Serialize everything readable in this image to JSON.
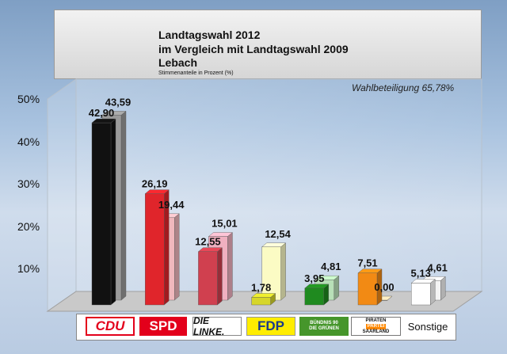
{
  "chart_data": {
    "type": "bar",
    "title": [
      "Landtagswahl 2012",
      "im Vergleich mit Landtagswahl 2009",
      "Lebach"
    ],
    "subtitle": "Stimmenanteile in Prozent (%)",
    "annotation": "Wahlbeteiligung 65,78%",
    "categories": [
      "CDU",
      "SPD",
      "DIE LINKE.",
      "FDP",
      "BÜNDNIS 90 DIE GRÜNEN",
      "PIRATEN PARTEI SAARLAND",
      "Sonstige"
    ],
    "series": [
      {
        "values": [
          42.9,
          26.19,
          12.55,
          1.78,
          3.95,
          7.51,
          5.13
        ],
        "labels": [
          "42,90",
          "26,19",
          "12,55",
          "1,78",
          "3,95",
          "7,51",
          "5,13"
        ]
      },
      {
        "values": [
          43.59,
          19.44,
          15.01,
          12.54,
          4.81,
          0.0,
          4.61
        ],
        "labels": [
          "43,59",
          "19,44",
          "15,01",
          "12,54",
          "4,81",
          "0,00",
          "4,61"
        ]
      }
    ],
    "colors_2012": [
      "#111111",
      "#e0252b",
      "#d0404f",
      "#d6d62a",
      "#1f8a1f",
      "#f28a14",
      "#ffffff"
    ],
    "colors_2009": [
      "#9a9a9a",
      "#f0b8bd",
      "#f0b0c0",
      "#fbfbc4",
      "#b8e0b8",
      "#fbd5b0",
      "#f4f4f4"
    ],
    "yticks": [
      "10%",
      "20%",
      "30%",
      "40%",
      "50%"
    ],
    "ylim": [
      0,
      50
    ],
    "grid": false
  },
  "legend_logos": {
    "cdu": "CDU",
    "spd": "SPD",
    "linke": "DIE LINKE.",
    "fdp": "FDP",
    "gruene_line1": "BÜNDNIS 90",
    "gruene_line2": "DIE GRÜNEN",
    "piraten_line1": "PIRATEN",
    "piraten_line2": "PARTEI",
    "piraten_line3": "SAARLAND",
    "sonstige": "Sonstige"
  }
}
